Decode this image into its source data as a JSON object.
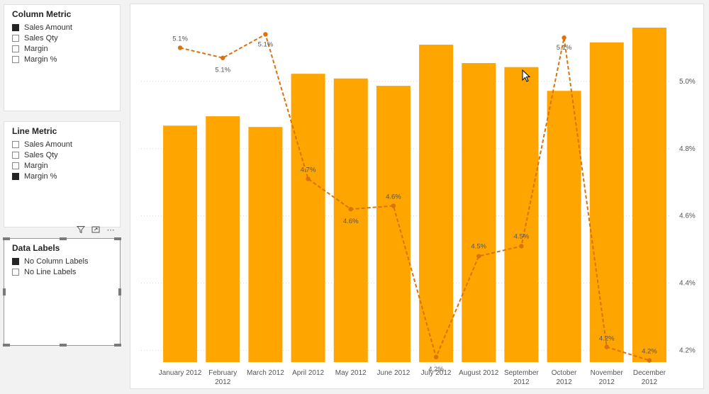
{
  "slicers": {
    "column": {
      "title": "Column Metric",
      "items": [
        {
          "label": "Sales Amount",
          "checked": true
        },
        {
          "label": "Sales Qty",
          "checked": false
        },
        {
          "label": "Margin",
          "checked": false
        },
        {
          "label": "Margin %",
          "checked": false
        }
      ]
    },
    "line": {
      "title": "Line Metric",
      "items": [
        {
          "label": "Sales Amount",
          "checked": false
        },
        {
          "label": "Sales Qty",
          "checked": false
        },
        {
          "label": "Margin",
          "checked": false
        },
        {
          "label": "Margin %",
          "checked": true
        }
      ]
    },
    "labels": {
      "title": "Data Labels",
      "items": [
        {
          "label": "No Column Labels",
          "checked": true
        },
        {
          "label": "No Line Labels",
          "checked": false
        }
      ]
    }
  },
  "toolbar": {
    "filter_icon": "filter-icon",
    "focus_icon": "focus-mode-icon",
    "more_glyph": "⋯"
  },
  "chart_data": {
    "type": "bar",
    "categories": [
      [
        "January 2012"
      ],
      [
        "February",
        "2012"
      ],
      [
        "March 2012"
      ],
      [
        "April 2012"
      ],
      [
        "May 2012"
      ],
      [
        "June 2012"
      ],
      [
        "July 2012"
      ],
      [
        "August 2012"
      ],
      [
        "September",
        "2012"
      ],
      [
        "October",
        "2012"
      ],
      [
        "November",
        "2012"
      ],
      [
        "December",
        "2012"
      ]
    ],
    "columns": {
      "values": [
        0.707,
        0.735,
        0.703,
        0.862,
        0.848,
        0.826,
        0.949,
        0.894,
        0.882,
        0.811,
        0.956,
        1.0
      ],
      "color": "#FFA500"
    },
    "line": {
      "values": [
        5.1,
        5.07,
        5.14,
        4.71,
        4.62,
        4.63,
        4.18,
        4.48,
        4.51,
        5.13,
        4.21,
        4.17
      ],
      "labels": [
        "5.1%",
        "5.1%",
        "5.1%",
        "4.7%",
        "4.6%",
        "4.6%",
        "4.2%",
        "4.5%",
        "4.5%",
        "5.1%",
        "4.2%",
        "4.2%"
      ],
      "color": "#D9730D",
      "style": "dashed"
    },
    "y2_ticks": [
      "5.0%",
      "4.8%",
      "4.6%",
      "4.4%",
      "4.2%"
    ],
    "y2_tick_values": [
      5.0,
      4.8,
      4.6,
      4.4,
      4.2
    ],
    "y2lim": [
      4.165,
      5.16
    ],
    "grid": true,
    "legend": "none"
  }
}
